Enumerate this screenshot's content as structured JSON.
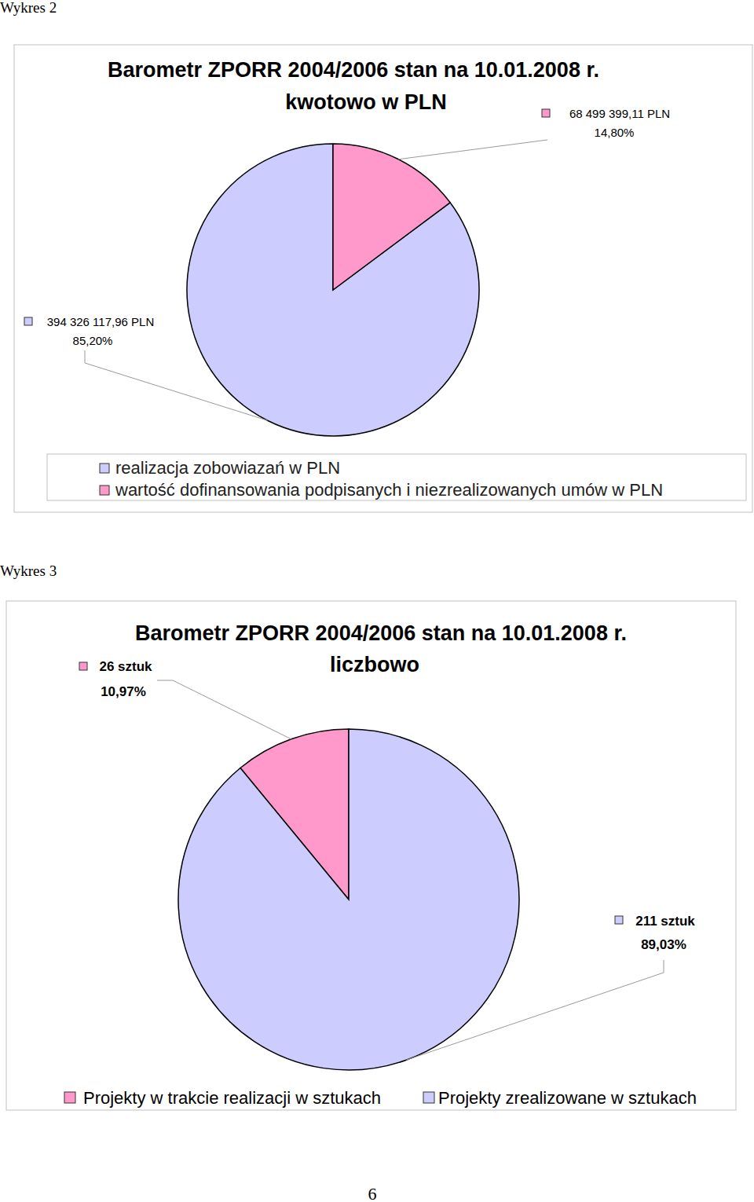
{
  "captions": [
    "Wykres 2",
    "Wykres 3"
  ],
  "page_number": 6,
  "chart_data": [
    {
      "type": "pie",
      "title": "Barometr ZPORR 2004/2006 stan na 10.01.2008 r.",
      "subtitle": "kwotowo w PLN",
      "categories": [
        "realizacja zobowiazań w PLN",
        "wartość dofinansowania podpisanych i niezrealizowanych umów w PLN"
      ],
      "values": [
        85.2,
        14.8
      ],
      "value_labels": [
        "85,20%",
        "14,80%"
      ],
      "amounts": [
        394326117.96,
        68499399.11
      ],
      "amount_labels": [
        "394 326 117,96 PLN",
        "68 499 399,11 PLN"
      ],
      "colors": [
        "#ccccff",
        "#ff99cc"
      ],
      "data_labels": true,
      "legend": "bottom"
    },
    {
      "type": "pie",
      "title": "Barometr ZPORR 2004/2006 stan na 10.01.2008 r.",
      "subtitle": "liczbowo",
      "categories": [
        "Projekty w trakcie realizacji w sztukach",
        "Projekty zrealizowane w sztukach"
      ],
      "values": [
        10.97,
        89.03
      ],
      "value_labels": [
        "10,97%",
        "89,03%"
      ],
      "counts": [
        26,
        211
      ],
      "count_labels": [
        "26 sztuk",
        "211 sztuk"
      ],
      "colors": [
        "#ff99cc",
        "#ccccff"
      ],
      "data_labels": true,
      "legend": "bottom"
    }
  ]
}
